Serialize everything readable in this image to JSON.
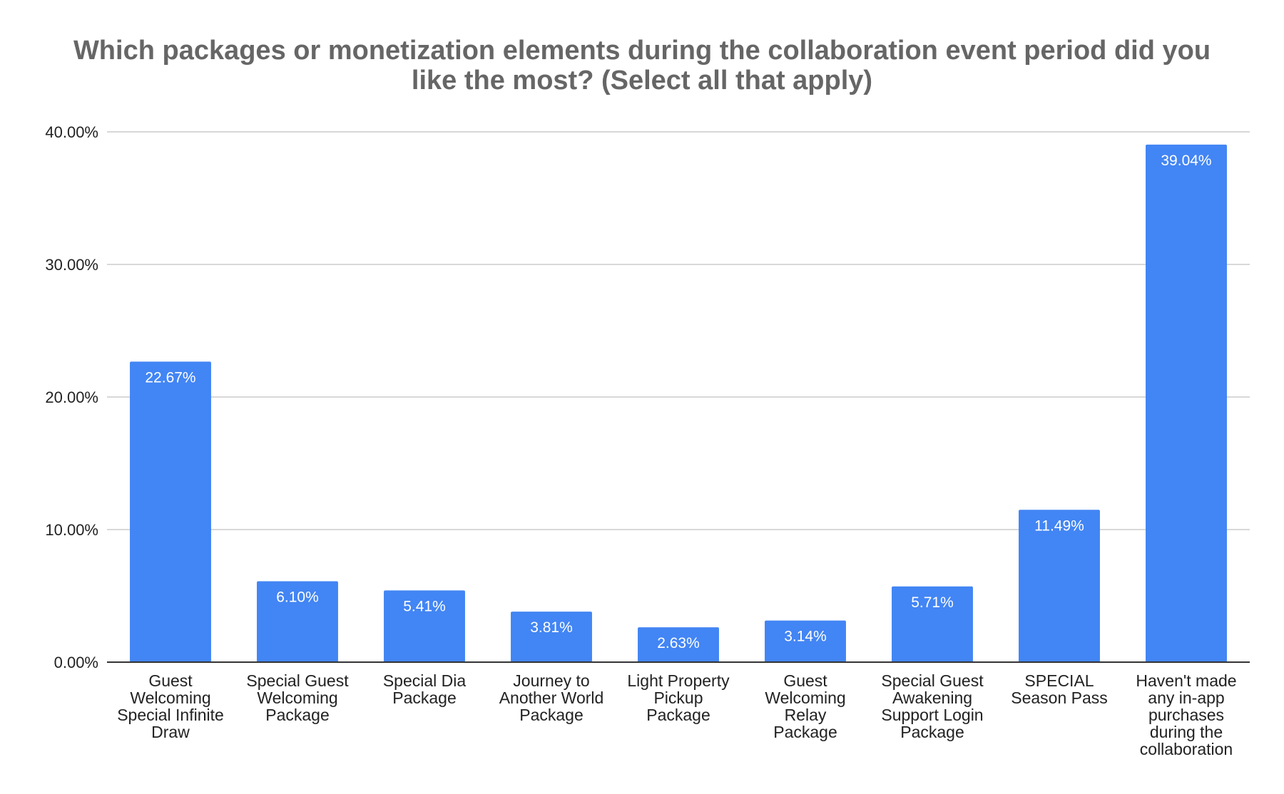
{
  "chart_data": {
    "type": "bar",
    "title": "Which packages or monetization elements during the collaboration event period did you like the most? (Select all that apply)",
    "title_lines": [
      "Which packages or monetization elements during the collaboration event period did you",
      "like the most? (Select all that apply)"
    ],
    "categories": [
      "Guest Welcoming Special Infinite Draw",
      "Special Guest Welcoming Package",
      "Special Dia Package",
      "Journey to Another World Package",
      "Light Property Pickup Package",
      "Guest Welcoming Relay Package",
      "Special Guest Awakening Support Login Package",
      "SPECIAL Season Pass",
      "Haven't made any in-app purchases during the collaboration"
    ],
    "category_lines": [
      [
        "Guest",
        "Welcoming",
        "Special Infinite",
        "Draw"
      ],
      [
        "Special Guest",
        "Welcoming",
        "Package"
      ],
      [
        "Special Dia",
        "Package"
      ],
      [
        "Journey to",
        "Another World",
        "Package"
      ],
      [
        "Light Property",
        "Pickup",
        "Package"
      ],
      [
        "Guest",
        "Welcoming",
        "Relay",
        "Package"
      ],
      [
        "Special Guest",
        "Awakening",
        "Support Login",
        "Package"
      ],
      [
        "SPECIAL",
        "Season Pass"
      ],
      [
        "Haven't made",
        "any in-app",
        "purchases",
        "during the",
        "collaboration"
      ]
    ],
    "values": [
      22.67,
      6.1,
      5.41,
      3.81,
      2.63,
      3.14,
      5.71,
      11.49,
      39.04
    ],
    "data_labels": [
      "22.67%",
      "6.10%",
      "5.41%",
      "3.81%",
      "2.63%",
      "3.14%",
      "5.71%",
      "11.49%",
      "39.04%"
    ],
    "ylim": [
      0,
      40
    ],
    "yticks": [
      0,
      10,
      20,
      30,
      40
    ],
    "ytick_labels": [
      "0.00%",
      "10.00%",
      "20.00%",
      "30.00%",
      "40.00%"
    ],
    "xlabel": "",
    "ylabel": "",
    "grid": true,
    "legend": "none",
    "colors": {
      "bar": "#4285F4",
      "grid": "#cccccc",
      "axis": "#333333",
      "title": "#666666",
      "text": "#222222",
      "data_label": "#ffffff"
    }
  }
}
